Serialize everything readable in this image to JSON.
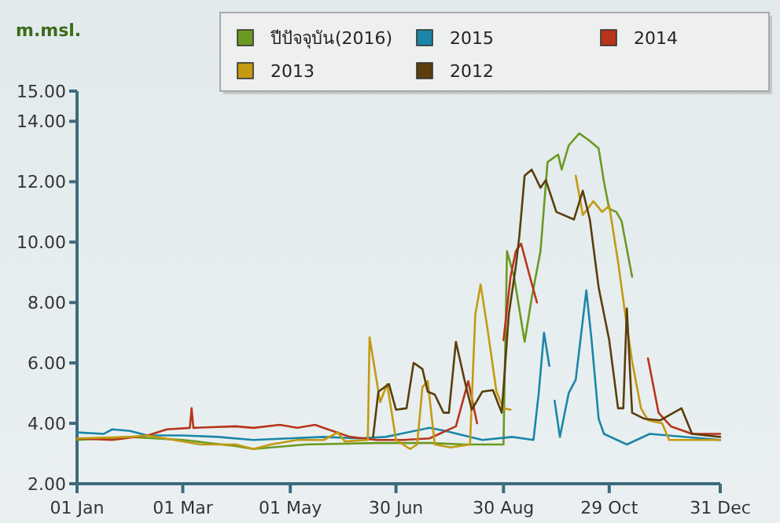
{
  "chart_data": {
    "type": "line",
    "ylabel": "m.msl.",
    "legend": "top right",
    "grid": false,
    "marker": "none",
    "line_style": "solid",
    "xlim": [
      "--01-01",
      "--12-31"
    ],
    "xticks": [
      {
        "value": "--01-01",
        "label": "01 Jan"
      },
      {
        "value": "--03-01",
        "label": "01 Mar"
      },
      {
        "value": "--05-01",
        "label": "01 May"
      },
      {
        "value": "--06-30",
        "label": "30 Jun"
      },
      {
        "value": "--08-30",
        "label": "30 Aug"
      },
      {
        "value": "--10-29",
        "label": "29 Oct"
      },
      {
        "value": "--12-31",
        "label": "31 Dec"
      }
    ],
    "ylim": [
      2,
      15
    ],
    "yticks": [
      {
        "value": 2,
        "label": "2.00"
      },
      {
        "value": 4,
        "label": "4.00"
      },
      {
        "value": 6,
        "label": "6.00"
      },
      {
        "value": 8,
        "label": "8.00"
      },
      {
        "value": 10,
        "label": "10.00"
      },
      {
        "value": 12,
        "label": "12.00"
      },
      {
        "value": 14,
        "label": "14.00"
      },
      {
        "value": 15,
        "label": "15.00"
      }
    ],
    "series": [
      {
        "name": "ปีปัจจุบัน(2016)",
        "color": "#6b9a22",
        "x": [
          "--01-01",
          "--01-31",
          "--03-01",
          "--03-31",
          "--04-10",
          "--05-10",
          "--06-19",
          "--07-19",
          "--08-08",
          "--08-30",
          "--09-01",
          "--09-05",
          "--09-11",
          "--09-15",
          "--09-20",
          "--09-24",
          "--09-30",
          "--10-02",
          "--10-06",
          "--10-12",
          "--10-18",
          "--10-23",
          "--10-26",
          "--10-29",
          "--11-02",
          "--11-05",
          "--11-11"
        ],
        "values": [
          3.45,
          3.55,
          3.45,
          3.25,
          3.15,
          3.3,
          3.35,
          3.35,
          3.3,
          3.3,
          9.7,
          8.85,
          6.7,
          8.15,
          9.7,
          12.65,
          12.9,
          12.4,
          13.2,
          13.6,
          13.35,
          13.1,
          12.0,
          11.1,
          11.0,
          10.7,
          8.85
        ]
      },
      {
        "name": "2015",
        "color": "#1a87a8",
        "x": [
          "--01-01",
          "--01-16",
          "--01-21",
          "--01-31",
          "--02-10",
          "--03-01",
          "--03-21",
          "--04-10",
          "--04-30",
          "--05-20",
          "--06-09",
          "--06-24",
          "--07-19",
          "--07-28",
          "--08-18",
          "--09-04",
          "--09-16",
          "--09-19",
          "--09-22",
          "--09-25",
          "--09-27",
          "--09-28",
          "--10-01",
          "--10-06",
          "--10-10",
          "--10-16",
          "--10-19",
          "--10-23",
          "--10-26",
          "--11-08",
          "--11-21",
          "--12-31"
        ],
        "values": [
          3.7,
          3.65,
          3.8,
          3.75,
          3.6,
          3.6,
          3.55,
          3.45,
          3.5,
          3.55,
          3.5,
          3.55,
          3.85,
          3.75,
          3.45,
          3.55,
          3.45,
          5.0,
          7.0,
          5.9,
          null,
          4.75,
          3.55,
          5.0,
          5.45,
          8.4,
          6.75,
          4.15,
          3.65,
          3.3,
          3.65,
          3.45
        ]
      },
      {
        "name": "2014",
        "color": "#b8341a",
        "x": [
          "--01-01",
          "--01-21",
          "--02-10",
          "--02-21",
          "--03-05",
          "--03-06",
          "--03-07",
          "--03-31",
          "--04-10",
          "--04-25",
          "--05-05",
          "--05-15",
          "--05-25",
          "--06-04",
          "--06-19",
          "--07-04",
          "--07-19",
          "--08-03",
          "--08-10",
          "--08-15",
          "--08-23",
          "--08-30",
          "--09-03",
          "--09-06",
          "--09-09",
          "--09-14",
          "--09-18",
          "--10-17",
          "--11-20",
          "--11-26",
          "--12-03",
          "--12-15",
          "--12-31"
        ],
        "values": [
          3.5,
          3.45,
          3.6,
          3.8,
          3.85,
          4.5,
          3.85,
          3.9,
          3.85,
          3.95,
          3.85,
          3.95,
          3.75,
          3.55,
          3.45,
          3.45,
          3.5,
          3.9,
          5.4,
          4.0,
          null,
          6.75,
          8.85,
          9.7,
          9.95,
          8.85,
          8.0,
          null,
          6.15,
          4.35,
          3.9,
          3.65,
          3.65
        ]
      },
      {
        "name": "2013",
        "color": "#c39a12",
        "x": [
          "--01-01",
          "--01-31",
          "--02-10",
          "--02-25",
          "--03-11",
          "--03-31",
          "--04-10",
          "--04-20",
          "--05-05",
          "--05-20",
          "--05-28",
          "--06-01",
          "--06-14",
          "--06-15",
          "--06-21",
          "--06-25",
          "--06-30",
          "--07-08",
          "--07-12",
          "--07-15",
          "--07-18",
          "--07-22",
          "--07-31",
          "--08-11",
          "--08-14",
          "--08-17",
          "--08-21",
          "--08-26",
          "--08-30",
          "--09-03",
          "--09-21",
          "--10-10",
          "--10-14",
          "--10-20",
          "--10-25",
          "--10-29",
          "--11-03",
          "--11-07",
          "--11-11",
          "--11-16",
          "--11-20",
          "--11-28",
          "--12-02",
          "--12-31"
        ],
        "values": [
          3.5,
          3.55,
          3.6,
          3.45,
          3.3,
          3.3,
          3.15,
          3.3,
          3.45,
          3.45,
          3.7,
          3.4,
          3.45,
          6.85,
          4.7,
          5.3,
          3.45,
          3.15,
          3.3,
          5.2,
          5.4,
          3.3,
          3.2,
          3.3,
          7.6,
          8.6,
          7.1,
          5.05,
          4.5,
          4.45,
          null,
          12.2,
          10.9,
          11.35,
          11.0,
          11.2,
          9.35,
          7.65,
          6.05,
          4.5,
          4.1,
          4.0,
          3.45,
          3.45
        ]
      },
      {
        "name": "2012",
        "color": "#5a3e0c",
        "x": [
          "--06-17",
          "--06-20",
          "--06-26",
          "--06-30",
          "--07-06",
          "--07-10",
          "--07-15",
          "--07-18",
          "--07-22",
          "--07-27",
          "--07-30",
          "--08-03",
          "--08-08",
          "--08-12",
          "--08-18",
          "--08-24",
          "--08-29",
          "--09-02",
          "--09-06",
          "--09-08",
          "--09-11",
          "--09-15",
          "--09-20",
          "--09-23",
          "--09-29",
          "--10-09",
          "--10-14",
          "--10-18",
          "--10-23",
          "--10-29",
          "--11-03",
          "--11-06",
          "--11-08",
          "--11-11",
          "--11-18",
          "--11-27",
          "--12-09",
          "--12-15",
          "--12-31"
        ],
        "values": [
          3.55,
          5.05,
          5.3,
          4.45,
          4.5,
          6.0,
          5.8,
          5.05,
          4.95,
          4.35,
          4.35,
          6.7,
          5.4,
          4.45,
          5.05,
          5.1,
          4.35,
          7.6,
          9.2,
          10.2,
          12.2,
          12.4,
          11.8,
          12.05,
          11.0,
          10.75,
          11.7,
          10.75,
          8.5,
          6.75,
          4.5,
          4.5,
          7.8,
          4.35,
          4.15,
          4.1,
          4.5,
          3.65,
          3.55
        ]
      }
    ]
  }
}
